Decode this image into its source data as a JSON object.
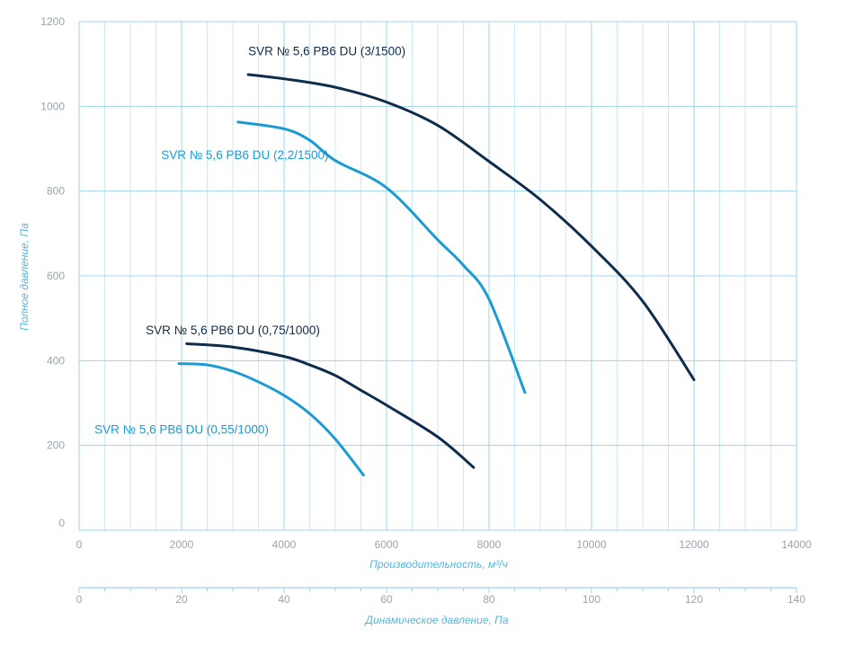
{
  "chart_data": {
    "type": "line",
    "title": "",
    "xlabel": "Производительность, м³/ч",
    "ylabel": "Полное давление, Па",
    "secondary_xlabel": "Динамическое давление, Па",
    "xlim": [
      0,
      14000
    ],
    "ylim": [
      0,
      1200
    ],
    "secondary_xlim": [
      0,
      140
    ],
    "grid": true,
    "x_ticks": [
      "0",
      "2000",
      "4000",
      "6000",
      "8000",
      "10000",
      "12000",
      "14000"
    ],
    "y_ticks": [
      "0",
      "200",
      "400",
      "600",
      "800",
      "1000",
      "1200"
    ],
    "secondary_x_ticks": [
      "0",
      "20",
      "40",
      "60",
      "80",
      "100",
      "120",
      "140"
    ],
    "colors": {
      "grid": "#9fd4ea",
      "dark": "#0e2c4c",
      "light": "#1b9bd3",
      "tick": "#9aa4ad",
      "axis_title": "#55b6dc"
    },
    "series": [
      {
        "name": "SVR № 5,6 PB6 DU (3/1500)",
        "color": "#0e2c4c",
        "label_anchor": [
          3300,
          1120
        ],
        "x": [
          3300,
          4000,
          5000,
          6000,
          7000,
          8000,
          9000,
          10000,
          11000,
          12000
        ],
        "y": [
          1075,
          1065,
          1045,
          1010,
          955,
          870,
          780,
          670,
          540,
          355
        ]
      },
      {
        "name": "SVR № 5,6 PB6 DU (2,2/1500)",
        "color": "#1b9bd3",
        "label_anchor": [
          1600,
          876
        ],
        "x": [
          3100,
          4000,
          4500,
          5000,
          6000,
          7000,
          7500,
          8000,
          8700
        ],
        "y": [
          963,
          947,
          920,
          872,
          808,
          685,
          625,
          545,
          325
        ]
      },
      {
        "name": "SVR № 5,6 PB6 DU (0,75/1000)",
        "color": "#0e2c4c",
        "label_anchor": [
          1300,
          462
        ],
        "x": [
          2100,
          3000,
          4000,
          4500,
          5000,
          5500,
          6000,
          7000,
          7700
        ],
        "y": [
          440,
          432,
          410,
          390,
          365,
          330,
          295,
          220,
          148
        ]
      },
      {
        "name": "SVR № 5,6 PB6 DU (0,55/1000)",
        "color": "#1b9bd3",
        "label_anchor": [
          300,
          228
        ],
        "x": [
          1950,
          2500,
          3000,
          3500,
          4000,
          4500,
          5000,
          5550
        ],
        "y": [
          393,
          390,
          375,
          350,
          318,
          275,
          215,
          130
        ]
      }
    ]
  }
}
